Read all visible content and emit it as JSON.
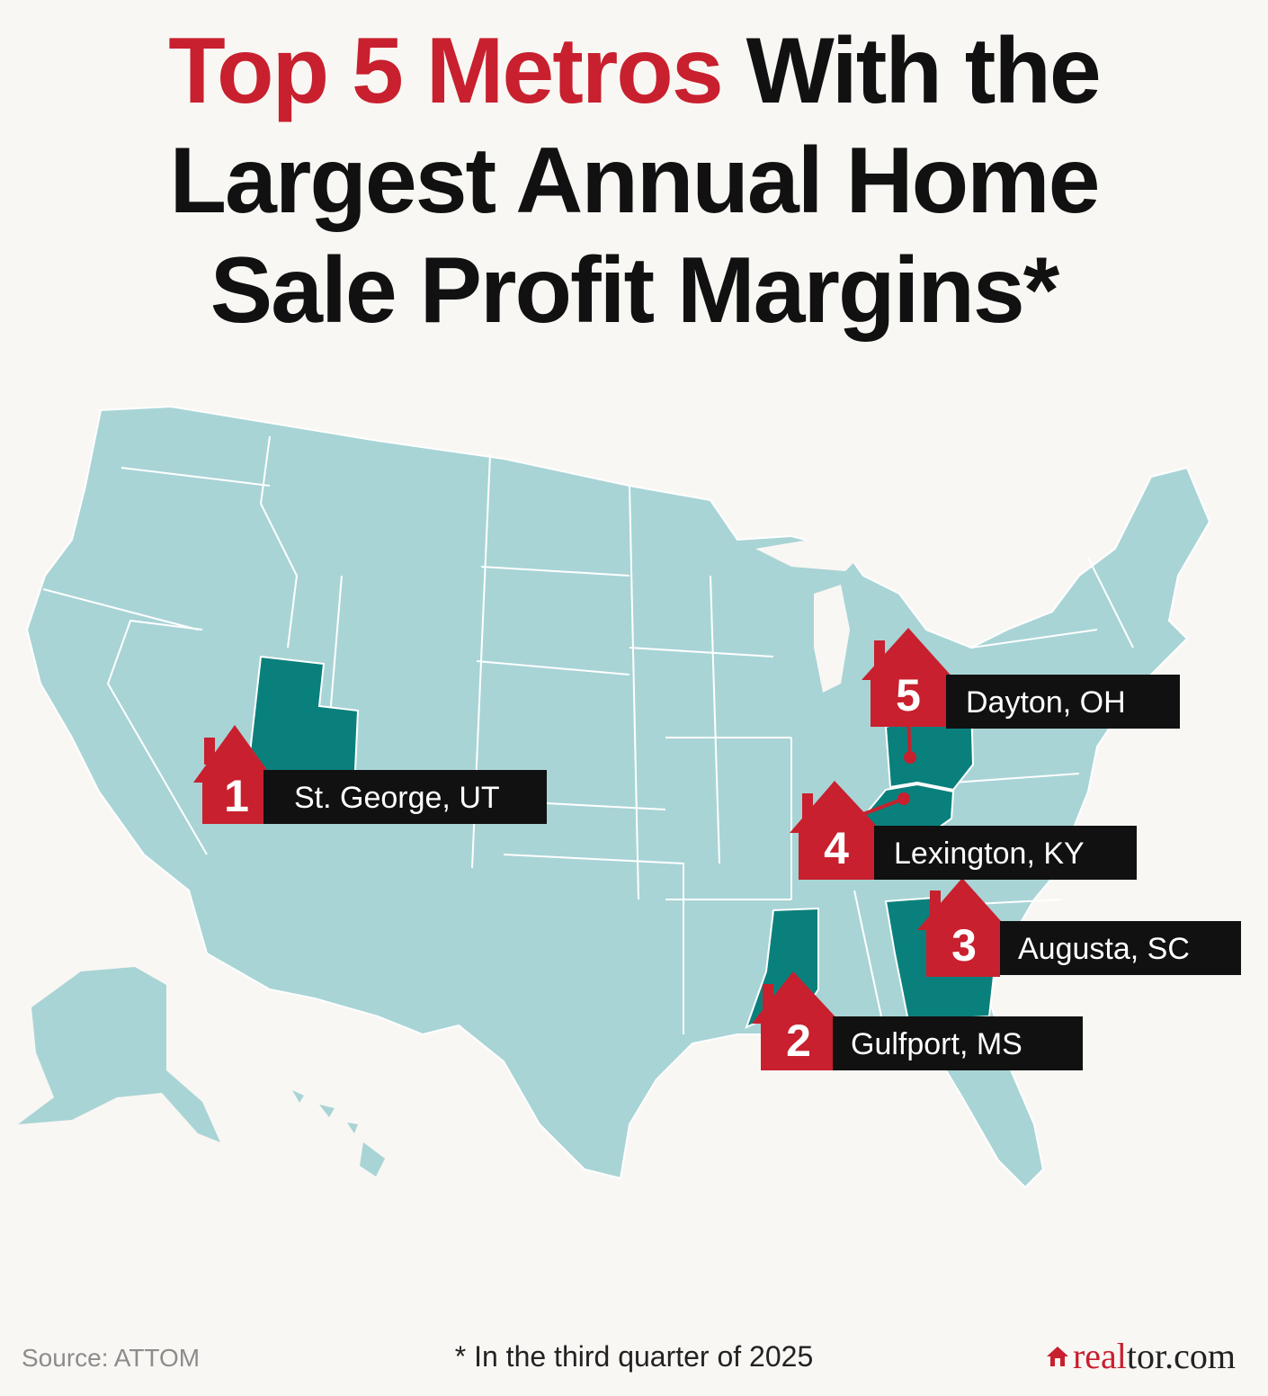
{
  "title": {
    "accent": "Top 5 Metros",
    "rest_line1": " With the",
    "line2": "Largest Annual Home",
    "line3": "Sale Profit Margins*"
  },
  "colors": {
    "accent": "#c8202e",
    "map_base": "#a8d4d6",
    "highlight": "#0a807c",
    "label_bg": "#111111",
    "background": "#f9f7f3"
  },
  "metros": [
    {
      "rank": "1",
      "label": "St. George, UT",
      "state": "UT"
    },
    {
      "rank": "2",
      "label": "Gulfport, MS",
      "state": "MS"
    },
    {
      "rank": "3",
      "label": "Augusta, SC",
      "state": "GA/SC"
    },
    {
      "rank": "4",
      "label": "Lexington, KY",
      "state": "KY"
    },
    {
      "rank": "5",
      "label": "Dayton, OH",
      "state": "OH"
    }
  ],
  "footer": {
    "source": "Source: ATTOM",
    "note": "* In the third quarter of 2025",
    "brand_red": "real",
    "brand_rest": "tor.com"
  },
  "icons": {
    "marker": "house-icon",
    "brand": "house-icon"
  }
}
